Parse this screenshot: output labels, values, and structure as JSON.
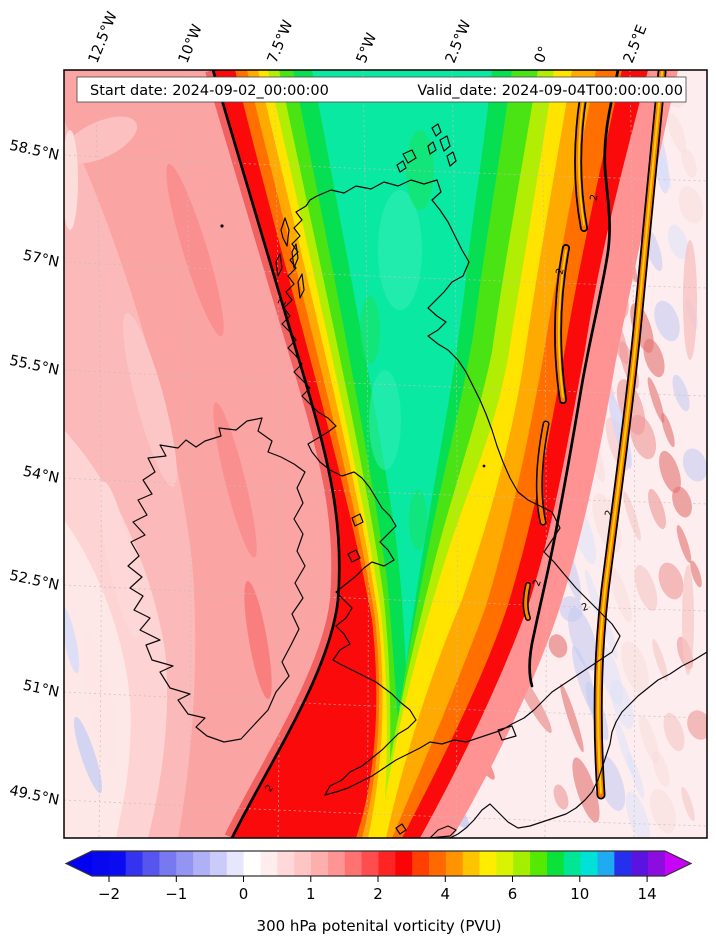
{
  "figure": {
    "start_date_label": "Start date: 2024-09-02_00:00:00",
    "valid_date_label": "Valid_date: 2024-09-04T00:00:00.00",
    "caption": "300 hPa potenital vorticity (PVU)",
    "contour_label": "2"
  },
  "axes": {
    "lon_ticks": [
      {
        "label": "12.5°W"
      },
      {
        "label": "10°W"
      },
      {
        "label": "7.5°W"
      },
      {
        "label": "5°W"
      },
      {
        "label": "2.5°W"
      },
      {
        "label": "0°"
      },
      {
        "label": "2.5°E"
      }
    ],
    "lat_ticks": [
      {
        "label": "58.5°N"
      },
      {
        "label": "57°N"
      },
      {
        "label": "55.5°N"
      },
      {
        "label": "54°N"
      },
      {
        "label": "52.5°N"
      },
      {
        "label": "51°N"
      },
      {
        "label": "49.5°N"
      }
    ]
  },
  "colorbar": {
    "tick_labels": [
      "−2",
      "−1",
      "0",
      "1",
      "2",
      "4",
      "6",
      "10",
      "14"
    ],
    "segment_colors": [
      "#0808f0",
      "#0b0bf2",
      "#3434f0",
      "#5656ee",
      "#7878f0",
      "#9494f3",
      "#b0b0f6",
      "#cbcbf9",
      "#e6e6fc",
      "#ffffff",
      "#ffecec",
      "#ffd9d9",
      "#ffc5c5",
      "#ffaeae",
      "#ff9494",
      "#ff7272",
      "#ff4c4c",
      "#ff2424",
      "#fa0505",
      "#ff4000",
      "#ff6a00",
      "#ff9400",
      "#ffc400",
      "#fded00",
      "#d8f202",
      "#a4ef00",
      "#55e800",
      "#0ae23b",
      "#00e695",
      "#00e2d8",
      "#1faaf2",
      "#2530ee",
      "#5b14e0",
      "#8d0cdf"
    ],
    "left_arrow_color": "#0202f0",
    "right_arrow_color": "#c803f8",
    "outline_color": "#333333"
  },
  "chart_data": {
    "type": "heatmap",
    "subtype": "filled contour map with overlaid contour line and coastlines",
    "title": "Start date: 2024-09-02_00:00:00 | Valid_date: 2024-09-04T00:00:00.00",
    "colorbar_label": "300 hPa potenital vorticity (PVU)",
    "units": "PVU",
    "colorbar_ticks": [
      -2,
      -1,
      0,
      1,
      2,
      4,
      6,
      10,
      14
    ],
    "colorbar_extend": "both",
    "contour_line_level": 2,
    "x_tick_labels": [
      "12.5°W",
      "10°W",
      "7.5°W",
      "5°W",
      "2.5°W",
      "0°",
      "2.5°E"
    ],
    "y_tick_labels": [
      "58.5°N",
      "57°N",
      "55.5°N",
      "54°N",
      "52.5°N",
      "51°N",
      "49.5°N"
    ],
    "legend_position": "bottom horizontal colorbar with arrow extensions",
    "map_region": "British Isles and surrounding NE Atlantic / North Sea / Channel",
    "field_summary": [
      "Broad region of PV about 1 to 2 PVU (pink/red shades) over the Atlantic west of Ireland, lightening toward the southwest corner",
      "Sharp PV gradient marked by the black 2 PVU contour running NNE-SSW from north of Scotland down through the Celtic Sea",
      "Elongated high-PV core of roughly 6 to 10 PVU (green/teal) over Scotland, northern England and the western North Sea",
      "Thin black-outlined high-PV filaments (orange/yellow, > 2 PVU) over eastern England and the Channel, with noisy low-PV mottling (0 to 1 PVU, white/pale blue and small red blobs) farther east"
    ]
  }
}
